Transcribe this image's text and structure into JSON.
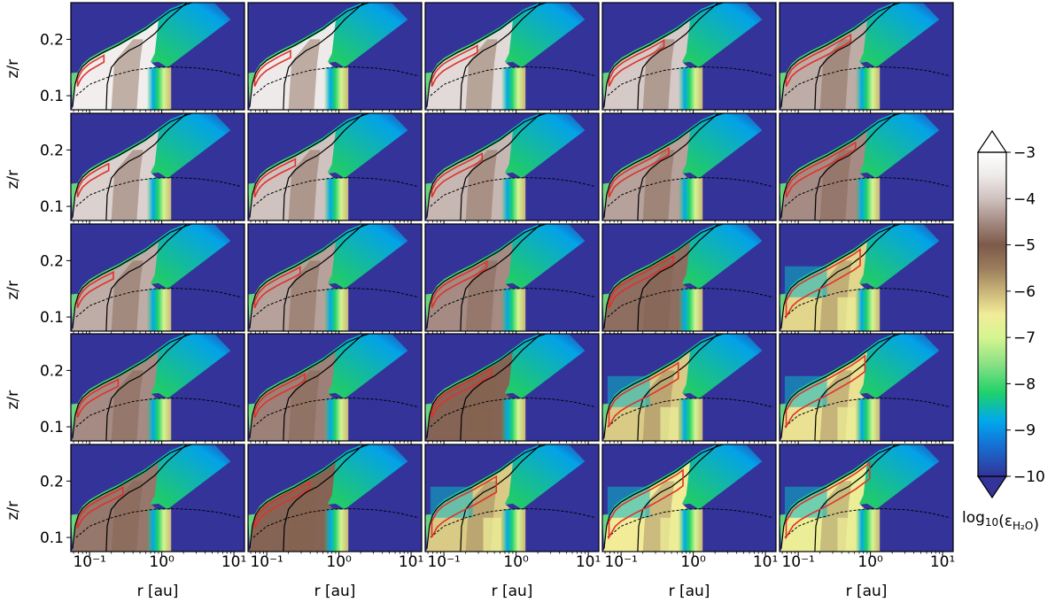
{
  "chart_data": {
    "type": "heatmap",
    "grid": {
      "rows": 5,
      "cols": 5
    },
    "x": {
      "label": "r [au]",
      "scale": "log",
      "range": [
        0.055,
        14
      ],
      "major_ticks": [
        0.1,
        1,
        10
      ],
      "tick_labels": [
        "10⁻¹",
        "10⁰",
        "10¹"
      ]
    },
    "y": {
      "label": "z/r",
      "range": [
        0.075,
        0.265
      ],
      "ticks": [
        0.1,
        0.2
      ],
      "tick_labels": [
        "0.1",
        "0.2"
      ]
    },
    "colorbar": {
      "label_prefix": "log",
      "label_sub": "10",
      "label_eps": "(ε",
      "label_eps_sub": "H₂O",
      "label_close": ")",
      "min": -10,
      "max": -3,
      "extend": "both",
      "ticks": [
        -3,
        -4,
        -5,
        -6,
        -7,
        -8,
        -9,
        -10
      ],
      "tick_labels": [
        "−3",
        "−4",
        "−5",
        "−6",
        "−7",
        "−8",
        "−9",
        "−10"
      ],
      "colormap": "terrain",
      "stops": [
        {
          "v": -10,
          "color": "#333399"
        },
        {
          "v": -9.3,
          "color": "#1473d6"
        },
        {
          "v": -8.8,
          "color": "#00a8ed"
        },
        {
          "v": -8.2,
          "color": "#1ed16b"
        },
        {
          "v": -7.6,
          "color": "#86e083"
        },
        {
          "v": -7,
          "color": "#d6f591"
        },
        {
          "v": -6.5,
          "color": "#f2ec99"
        },
        {
          "v": -6,
          "color": "#c9b578"
        },
        {
          "v": -5.5,
          "color": "#9a7c5c"
        },
        {
          "v": -5,
          "color": "#7d5a4a"
        },
        {
          "v": -4.5,
          "color": "#a58b83"
        },
        {
          "v": -4,
          "color": "#cfc2bf"
        },
        {
          "v": -3.5,
          "color": "#eeeae9"
        },
        {
          "v": -3,
          "color": "#ffffff"
        }
      ]
    },
    "panel_inner_log_abundance": [
      [
        -3.4,
        -3.5,
        -3.7,
        -3.9,
        -4.2
      ],
      [
        -3.8,
        -4.0,
        -4.1,
        -4.3,
        -4.5
      ],
      [
        -4.2,
        -4.3,
        -4.5,
        -4.8,
        -6.3
      ],
      [
        -4.5,
        -4.6,
        -4.9,
        -6.2,
        -6.4
      ],
      [
        -4.7,
        -4.9,
        -6.2,
        -6.5,
        -6.6
      ]
    ],
    "reference_curves": {
      "dashed_surface": {
        "r": [
          0.065,
          0.1,
          0.2,
          0.4,
          0.8,
          1.6,
          3.2,
          6.4,
          12.8
        ],
        "zr": [
          0.1,
          0.12,
          0.135,
          0.145,
          0.15,
          0.151,
          0.149,
          0.144,
          0.135
        ]
      },
      "upper_boundary": {
        "r": [
          0.058,
          0.063,
          0.07,
          0.08,
          0.1,
          0.15,
          0.25,
          0.4,
          0.6,
          0.9,
          1.3,
          2.2,
          3.5,
          4.2
        ],
        "zr": [
          0.08,
          0.12,
          0.14,
          0.152,
          0.163,
          0.176,
          0.19,
          0.205,
          0.218,
          0.235,
          0.25,
          0.262,
          0.27,
          0.275
        ]
      },
      "midplane_front": {
        "r": [
          0.17,
          0.175,
          0.2,
          0.25,
          0.35,
          0.5,
          0.8,
          1.2,
          2,
          3
        ],
        "zr": [
          0.075,
          0.12,
          0.15,
          0.165,
          0.18,
          0.19,
          0.21,
          0.235,
          0.26,
          0.28
        ]
      }
    }
  }
}
